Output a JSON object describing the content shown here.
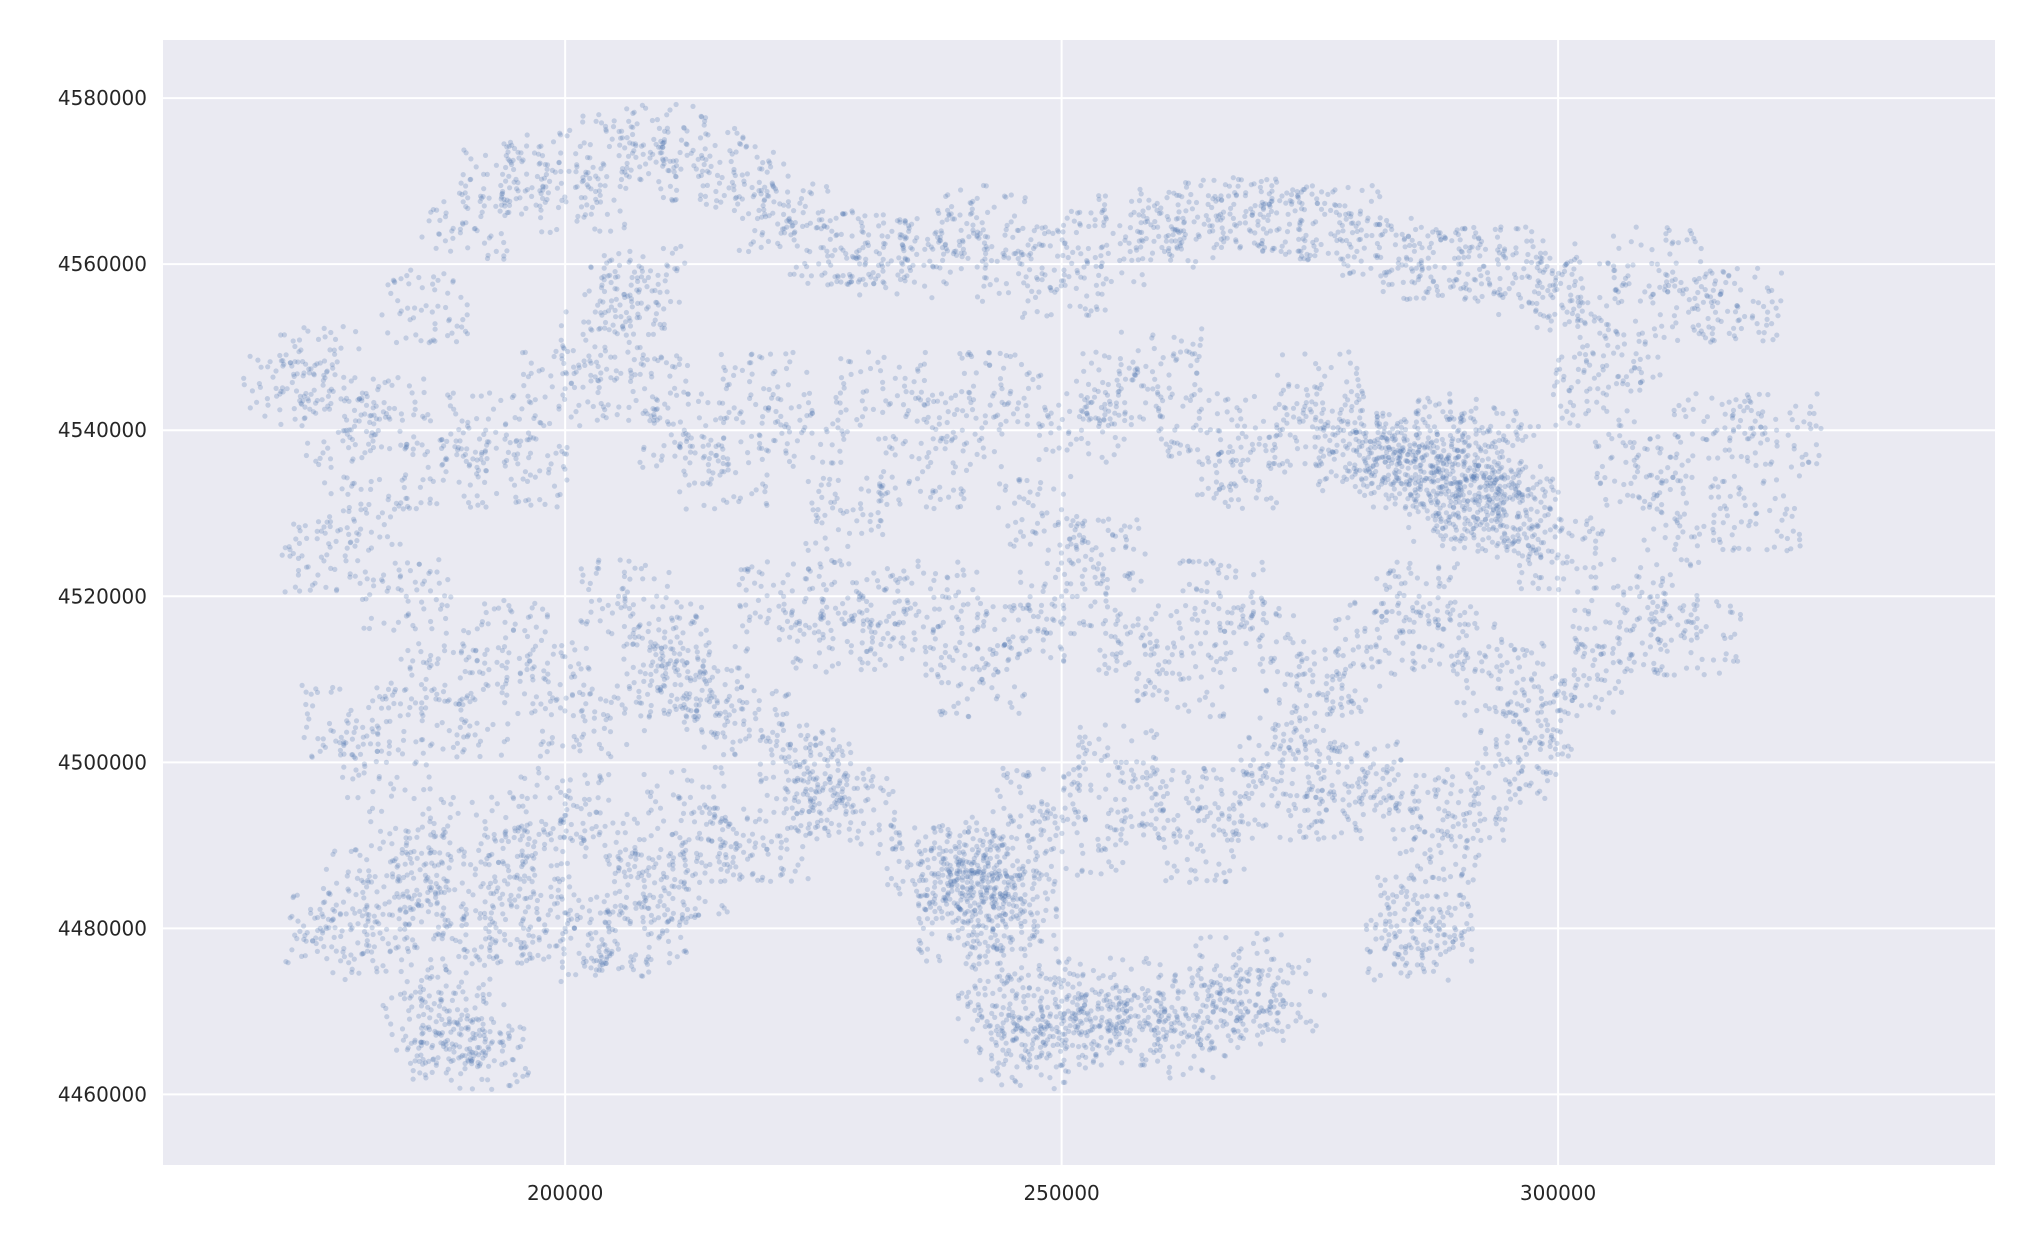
{
  "chart_data": {
    "type": "scatter",
    "title": "",
    "xlabel": "",
    "ylabel": "",
    "xlim": [
      159500,
      344000
    ],
    "ylim": [
      4451500,
      4587000
    ],
    "grid": true,
    "style": "seaborn-darkgrid",
    "colors": {
      "background": "#eaeaf2",
      "grid": "#ffffff",
      "point": "#4c72b0",
      "point_alpha": 0.25
    },
    "x_ticks": [
      {
        "value": 200000,
        "label": "200000"
      },
      {
        "value": 250000,
        "label": "250000"
      },
      {
        "value": 300000,
        "label": "300000"
      }
    ],
    "y_ticks": [
      {
        "value": 4460000,
        "label": "4460000"
      },
      {
        "value": 4480000,
        "label": "4480000"
      },
      {
        "value": 4500000,
        "label": "4500000"
      },
      {
        "value": 4520000,
        "label": "4520000"
      },
      {
        "value": 4540000,
        "label": "4540000"
      },
      {
        "value": 4560000,
        "label": "4560000"
      },
      {
        "value": 4580000,
        "label": "4580000"
      }
    ],
    "series": [
      {
        "values": "point cloud approximated below",
        "x": [
          172000,
          175000,
          178000,
          182000,
          186000,
          190000,
          194000,
          198000,
          202000,
          206000,
          210000,
          214000,
          218000,
          222000,
          226000,
          230000,
          234000,
          238000,
          242000,
          246000,
          250000,
          254000,
          258000,
          262000,
          266000,
          270000,
          274000,
          278000,
          282000,
          286000,
          290000,
          294000,
          298000,
          302000,
          306000,
          310000,
          314000,
          318000,
          322000,
          176000,
          180000,
          184000,
          188000,
          192000,
          196000,
          200000,
          204000,
          208000,
          212000,
          216000,
          220000,
          224000,
          228000,
          232000,
          236000,
          240000,
          244000,
          248000,
          252000,
          256000,
          260000,
          264000,
          268000,
          272000,
          276000,
          280000,
          284000,
          288000,
          292000,
          296000,
          300000,
          304000,
          308000,
          312000,
          316000,
          320000,
          178000,
          182000,
          186000,
          190000,
          194000,
          198000,
          202000,
          206000,
          210000,
          214000,
          218000,
          222000,
          226000,
          230000,
          234000,
          238000,
          242000,
          246000,
          250000,
          254000,
          258000,
          262000,
          266000,
          270000,
          274000,
          278000,
          282000,
          286000,
          290000,
          294000,
          298000,
          302000,
          306000,
          310000,
          314000,
          180000,
          184000,
          188000,
          192000,
          196000,
          200000,
          204000,
          208000,
          212000,
          216000,
          220000,
          224000,
          236000,
          240000,
          244000,
          248000,
          252000,
          256000,
          260000,
          264000,
          268000,
          272000,
          276000,
          280000,
          284000,
          288000,
          292000,
          296000,
          176000,
          180000,
          184000,
          188000,
          192000,
          196000,
          200000,
          204000,
          208000,
          212000,
          240000,
          244000,
          248000,
          252000,
          256000,
          260000,
          264000,
          268000,
          272000,
          186000,
          188000,
          190000,
          192000,
          244000,
          246000,
          248000,
          252000,
          256000,
          264000,
          268000,
          285000,
          286000,
          287000,
          290000,
          292000,
          294000,
          288000,
          290000,
          292000,
          294000,
          296000,
          284000,
          286000,
          280000,
          282000,
          240000,
          242000,
          244000,
          241000,
          243000,
          245000,
          225000,
          227000,
          229000,
          210000,
          212000,
          206000,
          208000
        ],
        "y": [
          4545000,
          4548000,
          4540000,
          4542000,
          4555000,
          4565000,
          4570000,
          4572000,
          4568000,
          4574000,
          4575000,
          4572000,
          4570000,
          4566000,
          4562000,
          4562000,
          4560000,
          4562000,
          4565000,
          4560000,
          4558000,
          4562000,
          4565000,
          4564000,
          4566000,
          4566000,
          4565000,
          4565000,
          4562000,
          4560000,
          4560000,
          4560000,
          4558000,
          4556000,
          4550000,
          4560000,
          4555000,
          4555000,
          4540000,
          4525000,
          4530000,
          4520000,
          4535000,
          4540000,
          4535000,
          4545000,
          4550000,
          4545000,
          4540000,
          4535000,
          4545000,
          4540000,
          4530000,
          4545000,
          4535000,
          4540000,
          4545000,
          4530000,
          4540000,
          4545000,
          4548000,
          4540000,
          4535000,
          4540000,
          4545000,
          4538000,
          4535000,
          4530000,
          4532000,
          4530000,
          4525000,
          4545000,
          4535000,
          4530000,
          4540000,
          4530000,
          4505000,
          4500000,
          4510000,
          4505000,
          4515000,
          4510000,
          4505000,
          4520000,
          4515000,
          4510000,
          4505000,
          4520000,
          4515000,
          4520000,
          4515000,
          4520000,
          4510000,
          4515000,
          4520000,
          4525000,
          4515000,
          4510000,
          4520000,
          4515000,
          4505000,
          4510000,
          4515000,
          4520000,
          4515000,
          4510000,
          4505000,
          4510000,
          4515000,
          4520000,
          4515000,
          4485000,
          4490000,
          4485000,
          4492000,
          4488000,
          4495000,
          4490000,
          4485000,
          4495000,
          4490000,
          4490000,
          4500000,
          4488000,
          4485000,
          4490000,
          4495000,
          4490000,
          4500000,
          4495000,
          4490000,
          4495000,
          4500000,
          4495000,
          4498000,
          4495000,
          4490000,
          4495000,
          4500000,
          4480000,
          4478000,
          4482000,
          4475000,
          4480000,
          4482000,
          4480000,
          4478000,
          4480000,
          4485000,
          4480000,
          4475000,
          4470000,
          4472000,
          4468000,
          4472000,
          4470000,
          4475000,
          4472000,
          4468000,
          4466000,
          4468000,
          4465000,
          4468000,
          4466000,
          4465000,
          4470000,
          4468000,
          4466000,
          4470000,
          4478000,
          4482000,
          4480000,
          4540000,
          4538000,
          4536000,
          4535000,
          4533000,
          4531000,
          4530000,
          4528000,
          4536000,
          4538000,
          4537000,
          4538000,
          4488000,
          4485000,
          4484000,
          4487000,
          4483000,
          4482000,
          4498000,
          4496000,
          4494000,
          4510000,
          4508000,
          4556000,
          4558000
        ]
      }
    ]
  }
}
